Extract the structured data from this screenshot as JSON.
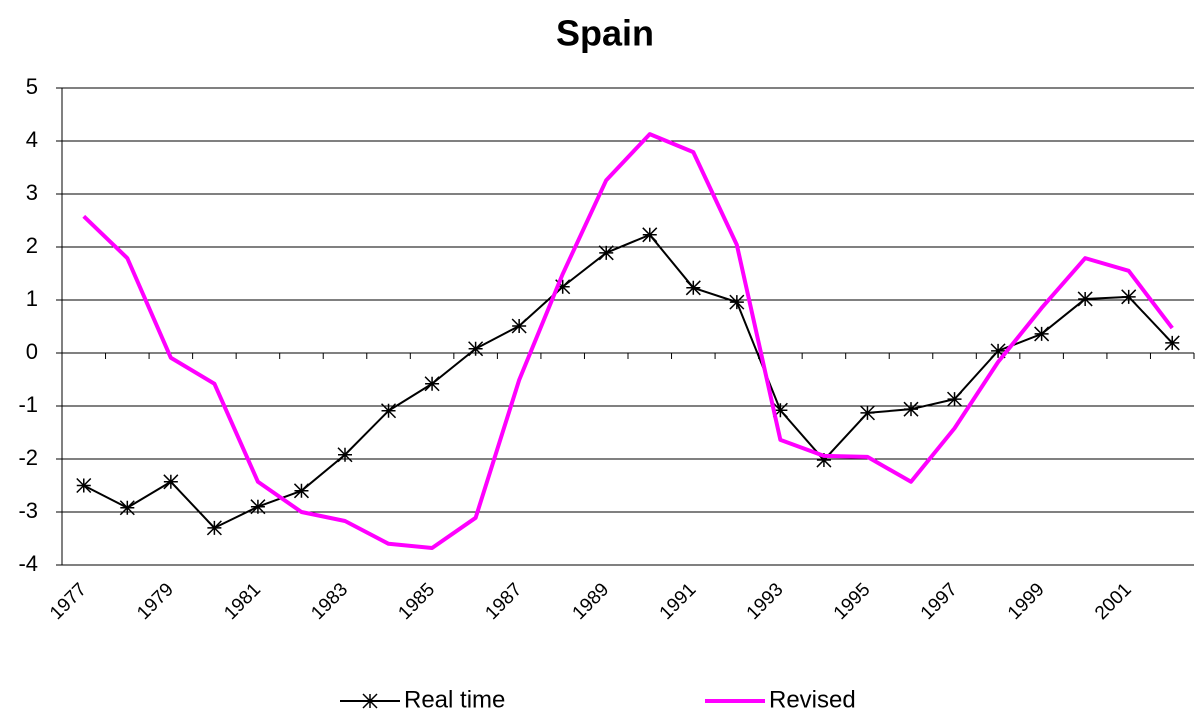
{
  "chart_data": {
    "type": "line",
    "title": "Spain",
    "categories": [
      "1977",
      null,
      "1979",
      null,
      "1981",
      null,
      "1983",
      null,
      "1985",
      null,
      "1987",
      null,
      "1989",
      null,
      "1991",
      null,
      "1993",
      null,
      "1995",
      null,
      "1997",
      null,
      "1999",
      null,
      "2001",
      null
    ],
    "series": [
      {
        "name": "Real time",
        "color": "#000000",
        "marker": "asterisk",
        "values": [
          -2.5,
          -2.92,
          -2.43,
          -3.3,
          -2.9,
          -2.6,
          -1.92,
          -1.09,
          -0.58,
          0.08,
          0.51,
          1.25,
          1.89,
          2.23,
          1.23,
          0.96,
          -1.08,
          -2.02,
          -1.13,
          -1.06,
          -0.87,
          0.04,
          0.36,
          1.02,
          1.06,
          0.19
        ]
      },
      {
        "name": "Revised",
        "color": "#ff00ff",
        "marker": "none",
        "values": [
          2.58,
          1.79,
          -0.09,
          -0.58,
          -2.43,
          -3.0,
          -3.17,
          -3.6,
          -3.68,
          -3.11,
          -0.51,
          1.49,
          3.26,
          4.13,
          3.79,
          2.04,
          -1.64,
          -1.94,
          -1.96,
          -2.43,
          -1.42,
          -0.17,
          0.85,
          1.79,
          1.55,
          0.47
        ]
      }
    ],
    "ylim": [
      -4,
      5
    ],
    "yticks": [
      -4,
      -3,
      -2,
      -1,
      0,
      1,
      2,
      3,
      4,
      5
    ],
    "grid": true,
    "legend": "bottom"
  }
}
